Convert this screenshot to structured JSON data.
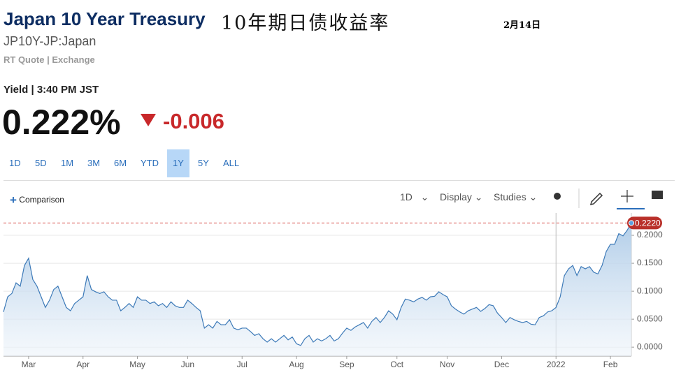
{
  "header": {
    "title": "Japan 10 Year Treasury",
    "subtitle_cn": "10年期日债收益率",
    "date": "2月14日",
    "symbol": "JP10Y-JP:Japan",
    "source": "RT Quote | Exchange"
  },
  "quote": {
    "label": "Yield | 3:40 PM JST",
    "price": "0.222%",
    "change": "-0.006"
  },
  "ranges": [
    "1D",
    "5D",
    "1M",
    "3M",
    "6M",
    "YTD",
    "1Y",
    "5Y",
    "ALL"
  ],
  "active_range": "1Y",
  "toolbar": {
    "comparison": "Comparison",
    "interval": "1D",
    "display": "Display",
    "studies": "Studies"
  },
  "chart_data": {
    "type": "area",
    "color": "#3d7ab8",
    "categories": [
      null,
      null,
      null,
      null,
      null,
      null,
      "Mar",
      null,
      null,
      null,
      null,
      null,
      null,
      null,
      null,
      null,
      null,
      null,
      null,
      "Apr",
      null,
      null,
      null,
      null,
      null,
      null,
      null,
      null,
      null,
      null,
      null,
      null,
      "May",
      null,
      null,
      null,
      null,
      null,
      null,
      null,
      null,
      null,
      null,
      null,
      "Jun",
      null,
      null,
      null,
      null,
      null,
      null,
      null,
      null,
      null,
      null,
      null,
      null,
      "Jul",
      null,
      null,
      null,
      null,
      null,
      null,
      null,
      null,
      null,
      null,
      null,
      null,
      "Aug",
      null,
      null,
      null,
      null,
      null,
      null,
      null,
      null,
      null,
      null,
      null,
      "Sep",
      null,
      null,
      null,
      null,
      null,
      null,
      null,
      null,
      null,
      null,
      null,
      "Oct",
      null,
      null,
      null,
      null,
      null,
      null,
      null,
      null,
      null,
      null,
      null,
      "Nov",
      null,
      null,
      null,
      null,
      null,
      null,
      null,
      null,
      null,
      null,
      null,
      null,
      "Dec",
      null,
      null,
      null,
      null,
      null,
      null,
      null,
      null,
      null,
      null,
      null,
      null,
      "2022",
      null,
      null,
      null,
      null,
      null,
      null,
      null,
      null,
      null,
      null,
      null,
      null,
      "Feb",
      null,
      null,
      null,
      null,
      null
    ],
    "values": [
      0.063,
      0.09,
      0.096,
      0.115,
      0.109,
      0.146,
      0.159,
      0.121,
      0.109,
      0.09,
      0.071,
      0.084,
      0.103,
      0.109,
      0.09,
      0.071,
      0.065,
      0.078,
      0.084,
      0.09,
      0.128,
      0.103,
      0.099,
      0.096,
      0.099,
      0.09,
      0.084,
      0.084,
      0.065,
      0.071,
      0.078,
      0.071,
      0.09,
      0.084,
      0.084,
      0.078,
      0.081,
      0.074,
      0.078,
      0.071,
      0.081,
      0.074,
      0.071,
      0.071,
      0.084,
      0.078,
      0.071,
      0.065,
      0.034,
      0.04,
      0.034,
      0.046,
      0.04,
      0.04,
      0.049,
      0.034,
      0.031,
      0.034,
      0.034,
      0.028,
      0.021,
      0.024,
      0.015,
      0.009,
      0.015,
      0.009,
      0.015,
      0.021,
      0.013,
      0.018,
      0.006,
      0.003,
      0.015,
      0.021,
      0.009,
      0.015,
      0.011,
      0.015,
      0.021,
      0.011,
      0.015,
      0.025,
      0.034,
      0.03,
      0.036,
      0.04,
      0.044,
      0.034,
      0.046,
      0.053,
      0.044,
      0.053,
      0.065,
      0.059,
      0.049,
      0.071,
      0.086,
      0.084,
      0.081,
      0.086,
      0.089,
      0.084,
      0.09,
      0.091,
      0.099,
      0.094,
      0.09,
      0.074,
      0.068,
      0.063,
      0.059,
      0.065,
      0.068,
      0.071,
      0.064,
      0.069,
      0.076,
      0.074,
      0.061,
      0.053,
      0.044,
      0.053,
      0.049,
      0.046,
      0.044,
      0.046,
      0.041,
      0.04,
      0.053,
      0.056,
      0.063,
      0.065,
      0.071,
      0.09,
      0.128,
      0.14,
      0.146,
      0.128,
      0.144,
      0.14,
      0.144,
      0.134,
      0.131,
      0.146,
      0.171,
      0.184,
      0.184,
      0.203,
      0.199,
      0.209,
      0.222
    ],
    "ylim": [
      -0.016,
      0.24
    ],
    "yticks": [
      {
        "value": 0,
        "label": "0.0000"
      },
      {
        "value": 0.05,
        "label": "0.0500"
      },
      {
        "value": 0.1,
        "label": "0.1000"
      },
      {
        "value": 0.15,
        "label": "0.1500"
      },
      {
        "value": 0.2,
        "label": "0.2000"
      }
    ],
    "grid": true,
    "last_value": {
      "value": 0.222,
      "label": "0.2220"
    }
  }
}
